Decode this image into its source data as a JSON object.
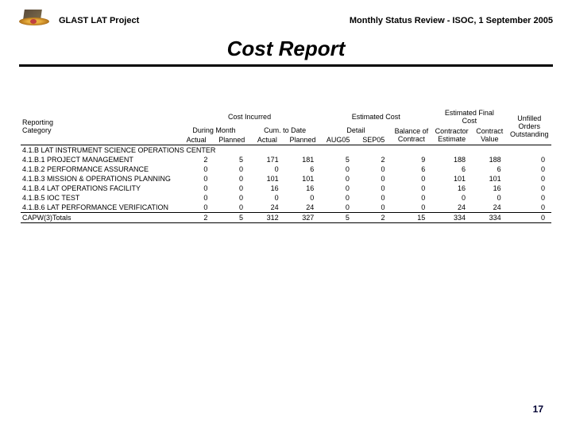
{
  "header": {
    "project": "GLAST LAT Project",
    "review": "Monthly Status Review - ISOC, 1 September 2005",
    "title": "Cost Report"
  },
  "table": {
    "heading": {
      "reporting_category": "Reporting\nCategory",
      "cost_incurred": "Cost Incurred",
      "estimated_cost": "Estimated Cost",
      "estimated_final_cost": "Estimated Final\nCost",
      "unfilled_orders": "Unfilled\nOrders\nOutstanding",
      "during_month": "During Month",
      "cum_to_date": "Cum. to Date",
      "detail": "Detail",
      "balance_of_contract": "Balance of\nContract",
      "contractor_estimate": "Contractor\nEstimate",
      "contract_value": "Contract\nValue",
      "actual": "Actual",
      "planned": "Planned",
      "aug05": "AUG05",
      "sep05": "SEP05"
    },
    "section_row": "4.1.B LAT INSTRUMENT SCIENCE OPERATIONS CENTER",
    "rows": [
      {
        "name": "4.1.B.1 PROJECT MANAGEMENT",
        "dm_a": "2",
        "dm_p": "5",
        "cd_a": "171",
        "cd_p": "181",
        "aug": "5",
        "sep": "2",
        "boc": "9",
        "ce": "188",
        "cv": "188",
        "uo": "0"
      },
      {
        "name": "4.1.B.2 PERFORMANCE ASSURANCE",
        "dm_a": "0",
        "dm_p": "0",
        "cd_a": "0",
        "cd_p": "6",
        "aug": "0",
        "sep": "0",
        "boc": "6",
        "ce": "6",
        "cv": "6",
        "uo": "0"
      },
      {
        "name": "4.1.B.3 MISSION & OPERATIONS PLANNING",
        "dm_a": "0",
        "dm_p": "0",
        "cd_a": "101",
        "cd_p": "101",
        "aug": "0",
        "sep": "0",
        "boc": "0",
        "ce": "101",
        "cv": "101",
        "uo": "0"
      },
      {
        "name": "4.1.B.4 LAT OPERATIONS FACILITY",
        "dm_a": "0",
        "dm_p": "0",
        "cd_a": "16",
        "cd_p": "16",
        "aug": "0",
        "sep": "0",
        "boc": "0",
        "ce": "16",
        "cv": "16",
        "uo": "0"
      },
      {
        "name": "4.1.B.5 IOC TEST",
        "dm_a": "0",
        "dm_p": "0",
        "cd_a": "0",
        "cd_p": "0",
        "aug": "0",
        "sep": "0",
        "boc": "0",
        "ce": "0",
        "cv": "0",
        "uo": "0"
      },
      {
        "name": "4.1.B.6 LAT PERFORMANCE VERIFICATION",
        "dm_a": "0",
        "dm_p": "0",
        "cd_a": "24",
        "cd_p": "24",
        "aug": "0",
        "sep": "0",
        "boc": "0",
        "ce": "24",
        "cv": "24",
        "uo": "0"
      }
    ],
    "totals": {
      "name": "CAPW(3)Totals",
      "dm_a": "2",
      "dm_p": "5",
      "cd_a": "312",
      "cd_p": "327",
      "aug": "5",
      "sep": "2",
      "boc": "15",
      "ce": "334",
      "cv": "334",
      "uo": "0"
    }
  },
  "page_number": "17",
  "colors": {
    "text": "#000000",
    "rule": "#000000",
    "page_num": "#000033",
    "background": "#ffffff"
  }
}
